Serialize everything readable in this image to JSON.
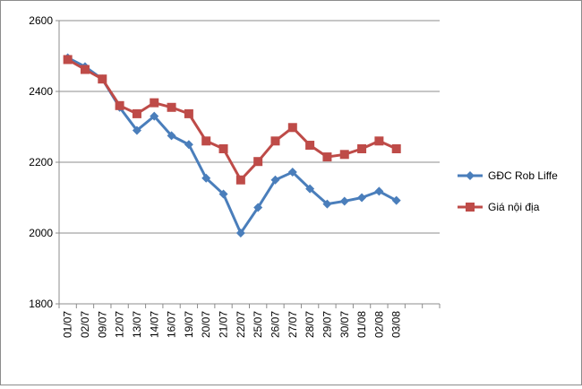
{
  "chart_data": {
    "type": "line",
    "categories": [
      "01/07",
      "02/07",
      "09/07",
      "12/07",
      "13/07",
      "14/07",
      "16/07",
      "19/07",
      "20/07",
      "21/07",
      "22/07",
      "25/07",
      "26/07",
      "27/07",
      "28/07",
      "29/07",
      "30/07",
      "01/08",
      "02/08",
      "03/08"
    ],
    "ylim": [
      1800,
      2600
    ],
    "yticks": [
      "1800",
      "2000",
      "2200",
      "2400",
      "2600"
    ],
    "grid": true,
    "legend_position": "right",
    "series": [
      {
        "name": "GĐC Rob Liffe",
        "color": "#4a7ebb",
        "marker": "diamond",
        "values": [
          2495,
          2470,
          2435,
          2355,
          2290,
          2330,
          2275,
          2250,
          2155,
          2110,
          2000,
          2072,
          2150,
          2172,
          2125,
          2082,
          2090,
          2100,
          2118,
          2092
        ]
      },
      {
        "name": "Giá nội địa",
        "color": "#be4b48",
        "marker": "square",
        "values": [
          2490,
          2462,
          2435,
          2360,
          2337,
          2368,
          2355,
          2337,
          2260,
          2238,
          2150,
          2202,
          2260,
          2298,
          2248,
          2215,
          2222,
          2238,
          2260,
          2238
        ]
      }
    ]
  }
}
